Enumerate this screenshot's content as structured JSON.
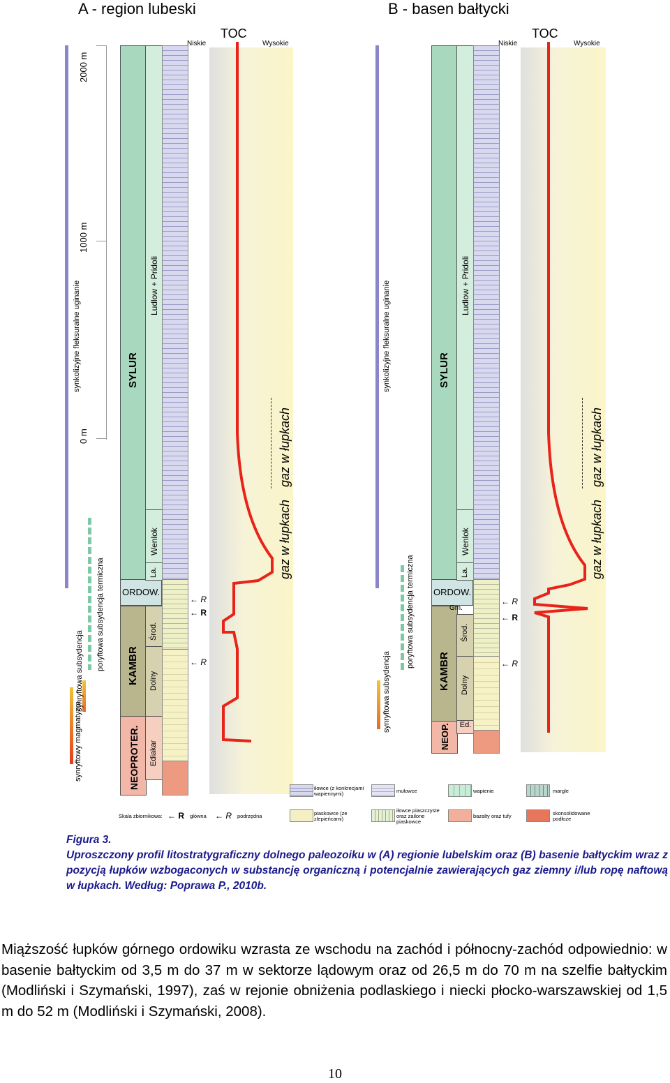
{
  "figure": {
    "panel_a_title": "A - region lubeski",
    "panel_b_title": "B - basen bałtycki",
    "toc_label": "TOC",
    "toc_low": "Niskie",
    "toc_high": "Wysokie",
    "scale_ticks": [
      "2000 m",
      "1000 m",
      "0 m"
    ],
    "subsidence_labels": [
      "synkolizyjne fleksuralne uginanie",
      "poryftowa subsydencja termiczna",
      "synryftowa subsydencja",
      "synryftowy magmatyzm"
    ],
    "systems_a": [
      "SYLUR",
      "ORDOW.",
      "KAMBR",
      "NEOPROTER."
    ],
    "systems_b": [
      "SYLUR",
      "ORDOW.",
      "KAMBR",
      "NEOP."
    ],
    "series_a": [
      "Ludlow + Pridoli",
      "Wenlok",
      "La.",
      "Środ.",
      "Dolny",
      "Ediakar"
    ],
    "series_b": [
      "Ludlow + Pridoli",
      "Wenlok",
      "La.",
      "Gm.",
      "Środ.",
      "Dolny",
      "Ed."
    ],
    "reservoir_marks": [
      "R",
      "R",
      "R"
    ],
    "gas_labels": [
      "gaz w łupkach",
      "gaz w łupkach"
    ],
    "legend": {
      "items": [
        "iłowce (z konkrecjami wapiennymi)",
        "mułowce",
        "wapienie",
        "margle",
        "piaskowce (ze zlepieńcami)",
        "iłowce piaszczyste oraz zailone piaskowce",
        "bazalty oraz tufy",
        "skonsolidowane podłoże"
      ],
      "scale_label": "Skala zbiornikowa:",
      "main": "główna",
      "secondary": "podrzędna"
    }
  },
  "caption": {
    "title": "Figura 3.",
    "text": "Uproszczony profil litostratygraficzny dolnego paleozoiku w (A) regionie lubelskim oraz (B) basenie bałtyckim wraz z pozycją łupków wzbogaconych w substancję organiczną i potencjalnie zawierających gaz ziemny i/lub ropę naftową w łupkach. Według: Poprawa P., 2010b."
  },
  "body": {
    "paragraph": "Miąższość łupków górnego ordowiku wzrasta ze wschodu na zachód i północny-zachód odpowiednio: w basenie bałtyckim od 3,5 m do 37 m w sektorze lądowym oraz od 26,5 m do 70 m na szelfie bałtyckim (Modliński i Szymański, 1997), zaś w rejonie obniżenia podlaskiego i niecki płocko-warszawskiej od 1,5 m do 52 m (Modliński i Szymański, 2008)."
  },
  "page_number": "10"
}
